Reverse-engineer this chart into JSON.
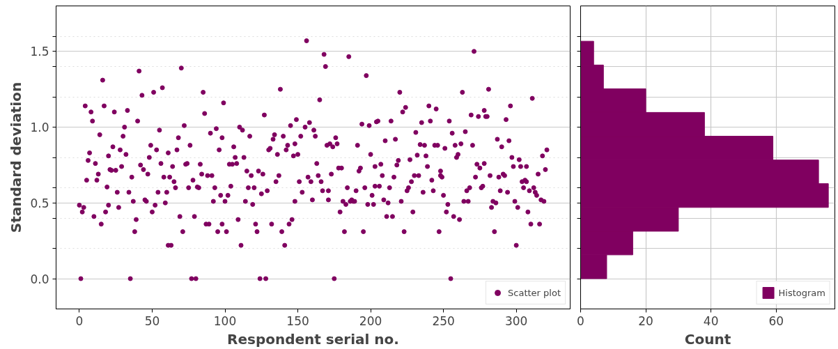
{
  "chart_data": [
    {
      "type": "scatter",
      "xlabel": "Respondent serial no.",
      "ylabel": "Standard deviation",
      "xlim": [
        -16,
        337
      ],
      "xticks": [
        0,
        50,
        100,
        150,
        200,
        250,
        300
      ],
      "ylim": [
        -0.2,
        1.8
      ],
      "yticks": [
        {
          "value": 0,
          "label": "0.0"
        },
        {
          "value": 0.2,
          "label": null
        },
        {
          "value": 0.4,
          "label": null
        },
        {
          "value": 0.5,
          "label": "0.5"
        },
        {
          "value": 0.6,
          "label": null
        },
        {
          "value": 0.8,
          "label": null
        },
        {
          "value": 1.0,
          "label": "1.0"
        },
        {
          "value": 1.2,
          "label": null
        },
        {
          "value": 1.4,
          "label": null
        },
        {
          "value": 1.5,
          "label": "1.5"
        },
        {
          "value": 1.6,
          "label": null
        }
      ],
      "grid": "y",
      "legend": "bottom right",
      "marker": "circle",
      "series": [
        {
          "name": "Scatter plot",
          "color": "#800060",
          "x": [
            0,
            1,
            2,
            3,
            4,
            5,
            6,
            7,
            8,
            9,
            10,
            11,
            12,
            13,
            14,
            15,
            16,
            17,
            18,
            19,
            20,
            20,
            21,
            22,
            23,
            24,
            25,
            26,
            27,
            28,
            29,
            30,
            31,
            32,
            33,
            34,
            35,
            36,
            37,
            38,
            39,
            40,
            41,
            42,
            43,
            44,
            45,
            46,
            47,
            48,
            49,
            50,
            51,
            52,
            53,
            54,
            55,
            56,
            57,
            58,
            59,
            60,
            61,
            61,
            62,
            63,
            64,
            65,
            66,
            67,
            68,
            69,
            70,
            71,
            72,
            73,
            74,
            75,
            76,
            77,
            78,
            79,
            80,
            81,
            82,
            83,
            84,
            85,
            86,
            87,
            88,
            89,
            90,
            91,
            92,
            93,
            94,
            95,
            96,
            97,
            98,
            98,
            99,
            100,
            101,
            102,
            103,
            104,
            105,
            106,
            107,
            108,
            109,
            110,
            111,
            112,
            113,
            114,
            115,
            116,
            117,
            118,
            119,
            120,
            121,
            122,
            123,
            124,
            125,
            126,
            127,
            128,
            129,
            130,
            131,
            132,
            133,
            134,
            135,
            136,
            137,
            138,
            139,
            140,
            141,
            142,
            143,
            144,
            145,
            146,
            147,
            148,
            148,
            149,
            150,
            151,
            152,
            153,
            155,
            156,
            157,
            158,
            159,
            160,
            161,
            162,
            163,
            164,
            165,
            166,
            167,
            168,
            169,
            170,
            171,
            171,
            172,
            173,
            174,
            175,
            176,
            177,
            178,
            179,
            180,
            181,
            182,
            183,
            184,
            185,
            186,
            187,
            188,
            189,
            190,
            191,
            192,
            193,
            194,
            195,
            196,
            197,
            198,
            199,
            200,
            201,
            202,
            203,
            203,
            204,
            205,
            206,
            207,
            208,
            209,
            210,
            211,
            212,
            213,
            214,
            215,
            216,
            217,
            218,
            219,
            220,
            221,
            222,
            223,
            224,
            225,
            226,
            227,
            228,
            229,
            230,
            231,
            232,
            233,
            234,
            235,
            236,
            237,
            238,
            239,
            240,
            241,
            242,
            243,
            244,
            245,
            246,
            247,
            248,
            248,
            249,
            250,
            251,
            252,
            253,
            254,
            255,
            256,
            257,
            258,
            259,
            260,
            261,
            262,
            263,
            264,
            265,
            266,
            267,
            268,
            269,
            270,
            271,
            272,
            273,
            274,
            275,
            276,
            277,
            278,
            278,
            279,
            280,
            281,
            282,
            283,
            284,
            285,
            286,
            287,
            288,
            289,
            290,
            291,
            292,
            293,
            294,
            295,
            296,
            297,
            298,
            299,
            300,
            301,
            302,
            303,
            304,
            305,
            306,
            307,
            307,
            308,
            309,
            310,
            311,
            312,
            313,
            314,
            315,
            316,
            317,
            318,
            319,
            320,
            321
          ],
          "values": [
            0.485,
            0.0,
            0.44,
            0.47,
            1.14,
            0.65,
            0.78,
            0.83,
            1.1,
            1.04,
            0.41,
            0.76,
            0.65,
            0.69,
            0.95,
            0.36,
            1.31,
            1.14,
            0.44,
            0.605,
            0.81,
            0.485,
            0.72,
            0.715,
            0.87,
            1.1,
            0.715,
            0.57,
            0.47,
            0.85,
            0.74,
            0.94,
            1.0,
            0.82,
            1.11,
            0.57,
            0.0,
            0.67,
            0.51,
            0.31,
            0.39,
            1.04,
            1.37,
            0.75,
            1.21,
            0.72,
            0.52,
            0.51,
            0.69,
            0.8,
            0.88,
            0.44,
            1.23,
            0.485,
            0.85,
            0.57,
            0.98,
            0.76,
            1.26,
            0.67,
            0.5,
            0.57,
            0.83,
            0.22,
            0.67,
            0.22,
            0.74,
            0.64,
            0.6,
            0.85,
            0.93,
            0.41,
            1.39,
            0.31,
            1.01,
            0.755,
            0.76,
            0.6,
            0.88,
            0.0,
            0.65,
            0.41,
            0.0,
            0.605,
            0.6,
            0.755,
            0.69,
            1.23,
            1.09,
            0.36,
            0.68,
            0.36,
            0.96,
            0.68,
            0.51,
            0.6,
            0.99,
            0.31,
            0.85,
            0.55,
            0.93,
            0.36,
            1.16,
            0.51,
            0.31,
            0.55,
            0.755,
            0.61,
            0.755,
            0.87,
            0.8,
            0.76,
            0.39,
            1.0,
            0.22,
            0.98,
            0.8,
            0.51,
            0.71,
            0.6,
            0.94,
            0.68,
            0.49,
            0.6,
            0.36,
            0.31,
            0.71,
            0.0,
            0.56,
            0.69,
            1.08,
            0.0,
            0.58,
            0.85,
            0.86,
            0.36,
            0.92,
            0.95,
            0.64,
            0.82,
            0.68,
            1.25,
            0.31,
            0.94,
            0.22,
            0.85,
            0.88,
            0.36,
            1.01,
            0.39,
            0.81,
            0.89,
            0.51,
            1.05,
            0.82,
            0.64,
            0.94,
            0.57,
            1.0,
            1.57,
            0.67,
            1.03,
            0.64,
            0.52,
            0.98,
            0.94,
            0.76,
            0.68,
            1.18,
            0.64,
            0.58,
            1.48,
            1.4,
            0.88,
            0.58,
            0.52,
            0.89,
            0.69,
            0.87,
            0.0,
            0.93,
            0.89,
            0.73,
            0.44,
            0.73,
            0.51,
            0.31,
            0.49,
            0.6,
            1.465,
            0.51,
            0.52,
            0.51,
            0.51,
            0.58,
            0.88,
            0.71,
            0.73,
            1.02,
            0.31,
            0.6,
            1.34,
            0.49,
            1.01,
            0.82,
            0.55,
            0.49,
            0.61,
            0.74,
            1.035,
            1.04,
            0.61,
            0.755,
            0.68,
            0.52,
            0.91,
            0.41,
            0.5,
            0.6,
            1.04,
            0.41,
            0.67,
            0.92,
            0.75,
            0.78,
            1.23,
            0.51,
            1.1,
            0.31,
            1.13,
            0.58,
            0.6,
            0.785,
            0.64,
            0.44,
            0.68,
            0.965,
            0.815,
            0.68,
            0.885,
            1.03,
            0.57,
            0.88,
            0.81,
            0.74,
            1.14,
            1.04,
            0.65,
            0.58,
            0.88,
            1.12,
            0.88,
            0.31,
            0.71,
            0.68,
            0.67,
            0.55,
            0.86,
            0.44,
            0.49,
            1.04,
            0.0,
            0.96,
            0.41,
            0.88,
            0.8,
            0.82,
            0.39,
            0.89,
            1.23,
            0.51,
            0.97,
            0.58,
            0.51,
            0.6,
            1.08,
            0.88,
            1.5,
            0.67,
            0.755,
            1.07,
            0.73,
            0.6,
            0.61,
            0.76,
            1.11,
            1.07,
            1.07,
            1.25,
            0.68,
            0.47,
            0.51,
            0.31,
            0.5,
            0.92,
            0.67,
            0.58,
            0.87,
            0.69,
            0.68,
            1.05,
            0.57,
            0.91,
            1.14,
            0.8,
            0.74,
            0.51,
            0.22,
            0.47,
            0.785,
            0.74,
            0.64,
            0.6,
            0.65,
            0.74,
            0.64,
            0.44,
            0.58,
            0.36,
            1.19,
            0.6,
            0.57,
            0.55,
            0.69,
            0.36,
            0.52,
            0.81,
            0.51,
            0.72,
            0.85
          ]
        }
      ]
    },
    {
      "type": "histogram",
      "orientation": "horizontal",
      "xlabel": "Count",
      "xlim": [
        0,
        78
      ],
      "xticks": [
        0,
        20,
        40,
        60
      ],
      "ylim": [
        -0.2,
        1.8
      ],
      "yticks": [
        0,
        0.2,
        0.4,
        0.5,
        0.6,
        0.8,
        1.0,
        1.2,
        1.4,
        1.5,
        1.6
      ],
      "tick_labels": "x",
      "grid": true,
      "legend": "bottom right",
      "bins": [
        0,
        0.157,
        0.313,
        0.47,
        0.627,
        0.783,
        0.94,
        1.097,
        1.253,
        1.41,
        1.567
      ],
      "series": [
        {
          "name": "Histogram",
          "color": "#800060",
          "values": [
            8,
            16,
            30,
            76,
            73,
            59,
            38,
            20,
            7,
            4
          ]
        }
      ]
    }
  ]
}
